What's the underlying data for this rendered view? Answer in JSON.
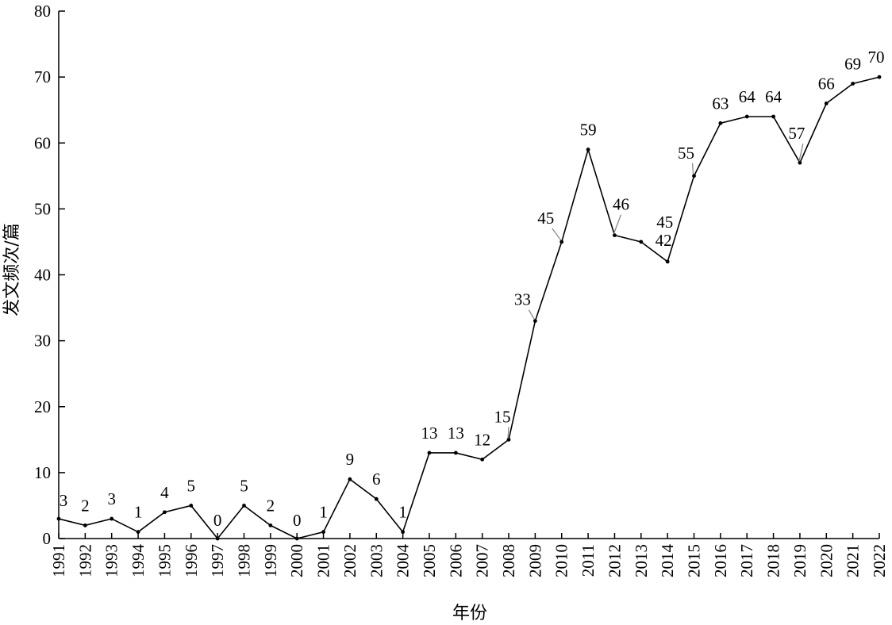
{
  "chart_data": {
    "type": "line",
    "title": "",
    "xlabel": "年份",
    "ylabel": "发文频次/篇",
    "ylim": [
      0,
      80
    ],
    "yticks": [
      0,
      10,
      20,
      30,
      40,
      50,
      60,
      70,
      80
    ],
    "grid": false,
    "legend": "none",
    "categories": [
      "1991",
      "1992",
      "1993",
      "1994",
      "1995",
      "1996",
      "1997",
      "1998",
      "1999",
      "2000",
      "2001",
      "2002",
      "2003",
      "2004",
      "2005",
      "2006",
      "2007",
      "2008",
      "2009",
      "2010",
      "2011",
      "2012",
      "2013",
      "2014",
      "2015",
      "2016",
      "2017",
      "2018",
      "2019",
      "2020",
      "2021",
      "2022"
    ],
    "values": [
      3,
      2,
      3,
      1,
      4,
      5,
      0,
      5,
      2,
      0,
      1,
      9,
      6,
      1,
      13,
      13,
      12,
      15,
      33,
      45,
      59,
      46,
      45,
      42,
      55,
      63,
      64,
      64,
      57,
      66,
      69,
      70
    ],
    "line_color": "#000000"
  }
}
